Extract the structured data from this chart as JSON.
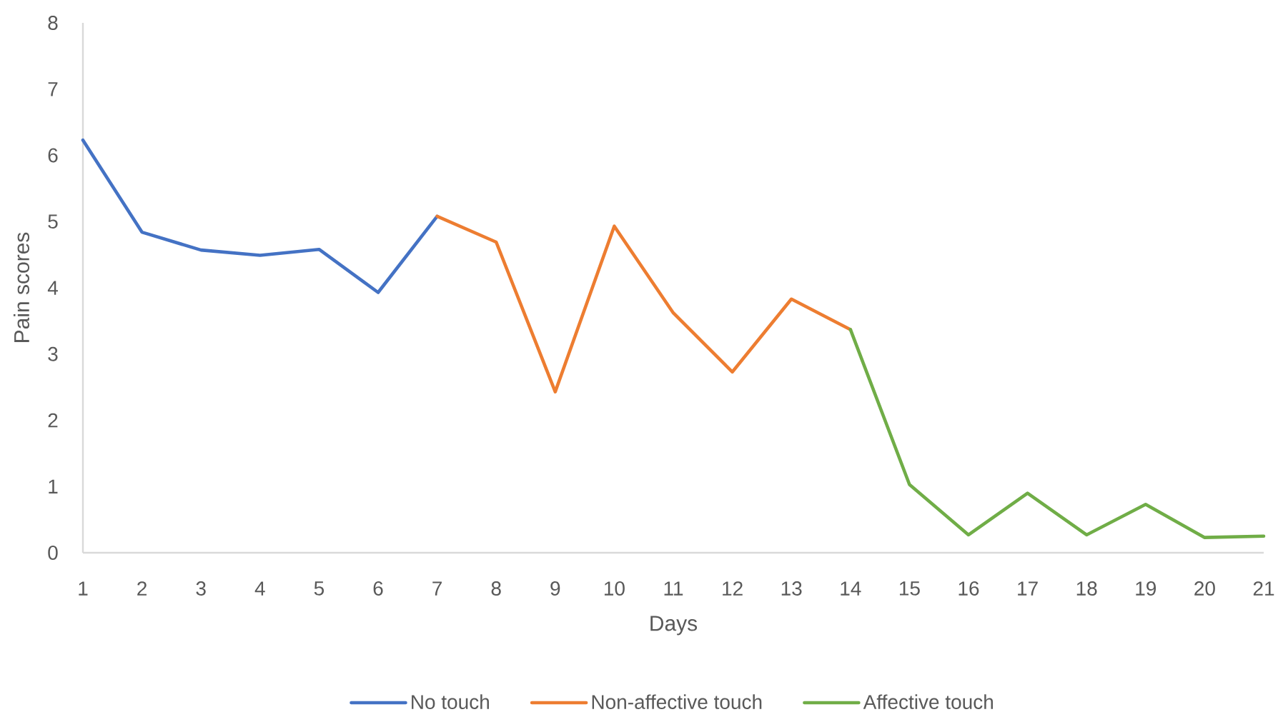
{
  "chart_data": {
    "type": "line",
    "xlabel": "Days",
    "ylabel": "Pain scores",
    "categories": [
      "1",
      "2",
      "3",
      "4",
      "5",
      "6",
      "7",
      "8",
      "9",
      "10",
      "11",
      "12",
      "13",
      "14",
      "15",
      "16",
      "17",
      "18",
      "19",
      "20",
      "21"
    ],
    "ylim": [
      0,
      8
    ],
    "yticks": [
      0,
      1,
      2,
      3,
      4,
      5,
      6,
      7,
      8
    ],
    "legend": "bottom",
    "marker": "none",
    "series": [
      {
        "name": "No touch",
        "color": "#4472c4",
        "values": [
          6.23,
          4.84,
          4.57,
          4.49,
          4.58,
          3.93,
          5.08,
          null,
          null,
          null,
          null,
          null,
          null,
          null,
          null,
          null,
          null,
          null,
          null,
          null,
          null
        ]
      },
      {
        "name": "Non-affective touch",
        "color": "#ed7d31",
        "values": [
          null,
          null,
          null,
          null,
          null,
          null,
          5.08,
          4.69,
          2.43,
          4.93,
          3.62,
          2.73,
          3.83,
          3.37,
          null,
          null,
          null,
          null,
          null,
          null,
          null
        ]
      },
      {
        "name": "Affective touch",
        "color": "#70ad47",
        "values": [
          null,
          null,
          null,
          null,
          null,
          null,
          null,
          null,
          null,
          null,
          null,
          null,
          null,
          3.37,
          1.03,
          0.27,
          0.9,
          0.27,
          0.73,
          0.23,
          0.25
        ]
      }
    ]
  }
}
